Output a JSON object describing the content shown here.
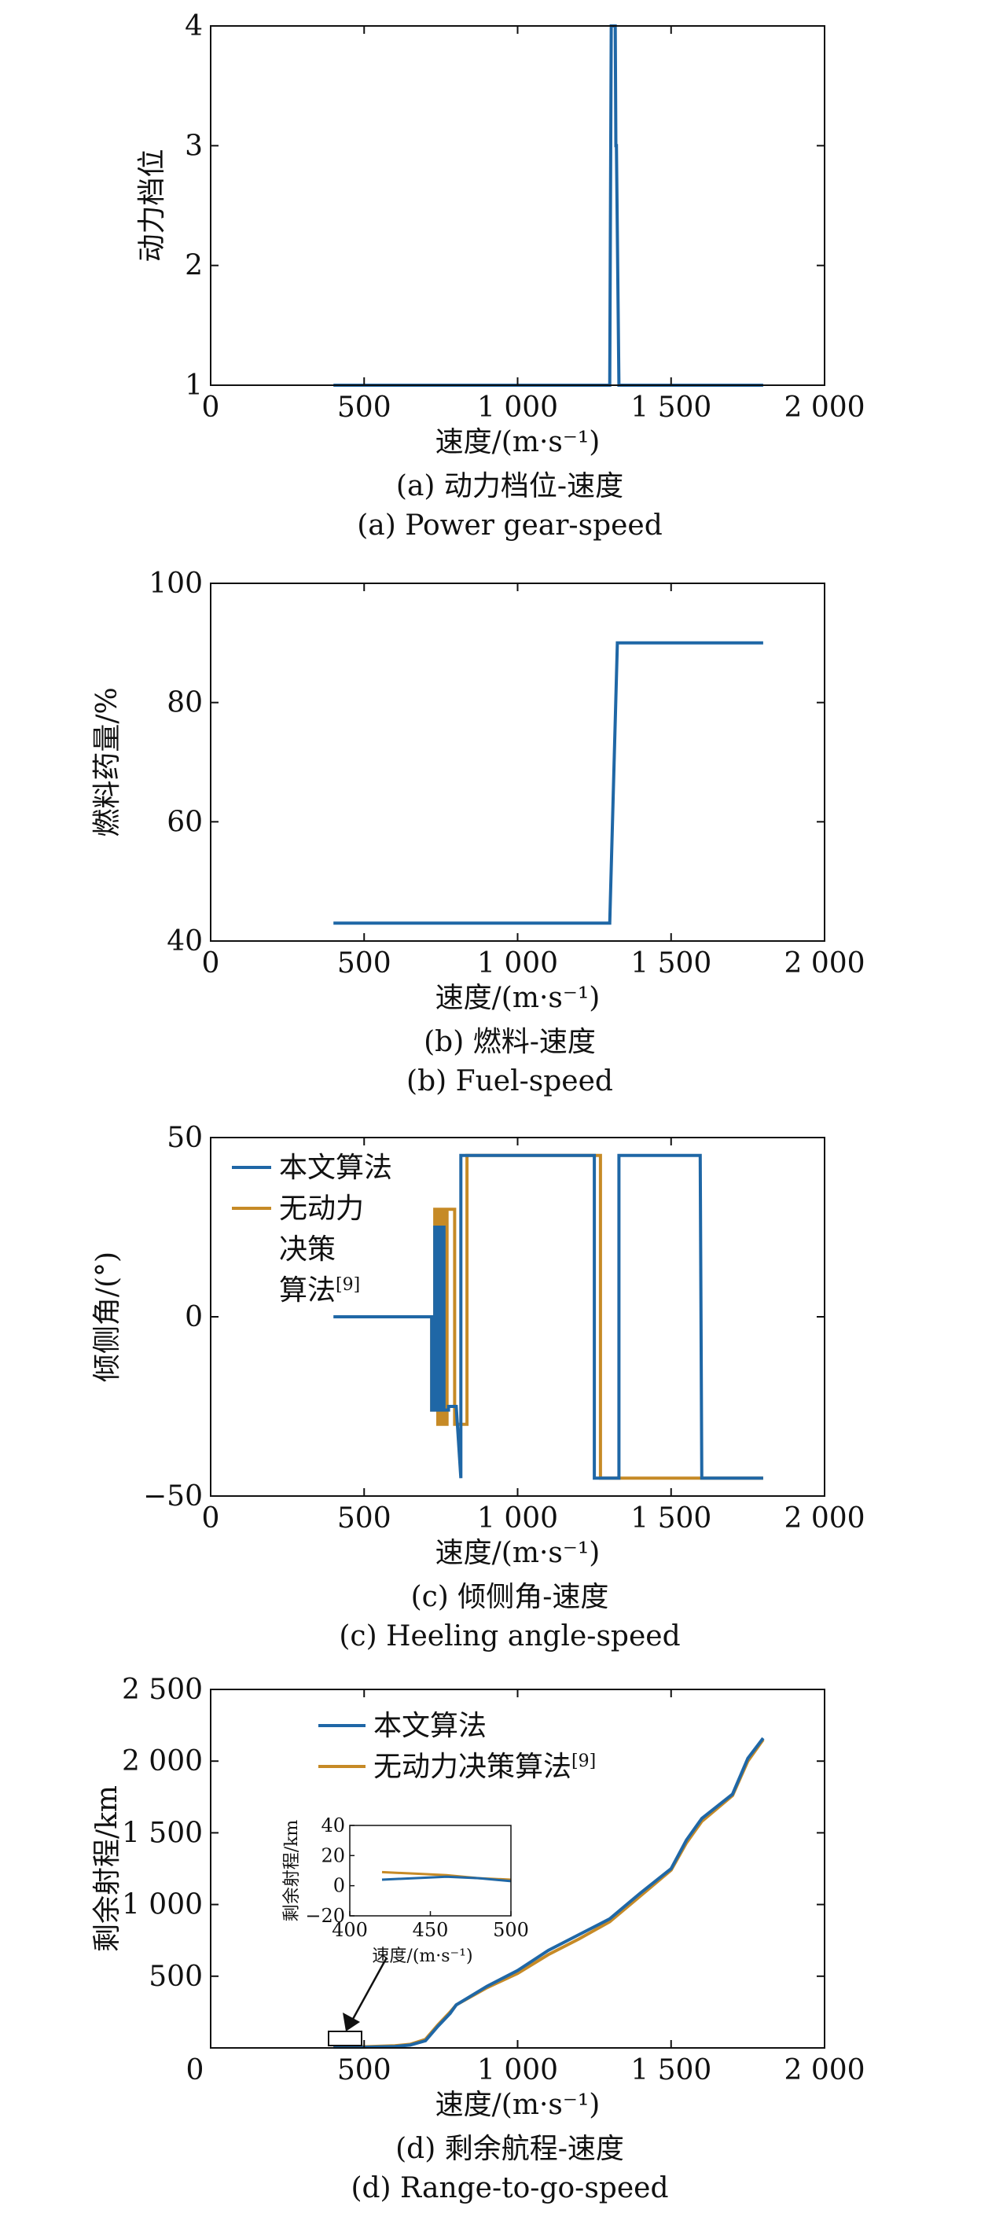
{
  "colors": {
    "series1": "#1f67a6",
    "series2": "#c68a26",
    "axis": "#111111"
  },
  "chart_data": [
    {
      "id": "a",
      "type": "line",
      "ylabel": "动力档位",
      "xlabel": "速度/(m·s⁻¹)",
      "xlim": [
        0,
        2000
      ],
      "ylim": [
        1,
        4
      ],
      "xticks": [
        0,
        500,
        1000,
        1500,
        2000
      ],
      "xtick_labels": [
        "0",
        "500",
        "1 000",
        "1 500",
        "2 000"
      ],
      "yticks": [
        1,
        2,
        3,
        4
      ],
      "ytick_labels": [
        "1",
        "2",
        "3",
        "4"
      ],
      "caption_cn": "(a) 动力档位-速度",
      "caption_en": "(a) Power gear-speed",
      "series": [
        {
          "color": "#1f67a6",
          "x": [
            400,
            1300,
            1305,
            1318,
            1320,
            1322,
            1330,
            1800
          ],
          "y": [
            1,
            1,
            4,
            4,
            3,
            3,
            1,
            1
          ]
        }
      ]
    },
    {
      "id": "b",
      "type": "line",
      "ylabel": "燃料药量/%",
      "xlabel": "速度/(m·s⁻¹)",
      "xlim": [
        0,
        2000
      ],
      "ylim": [
        40,
        100
      ],
      "xticks": [
        0,
        500,
        1000,
        1500,
        2000
      ],
      "xtick_labels": [
        "0",
        "500",
        "1 000",
        "1 500",
        "2 000"
      ],
      "yticks": [
        40,
        60,
        80,
        100
      ],
      "ytick_labels": [
        "40",
        "60",
        "80",
        "100"
      ],
      "caption_cn": "(b) 燃料-速度",
      "caption_en": "(b) Fuel-speed",
      "series": [
        {
          "color": "#1f67a6",
          "x": [
            400,
            1300,
            1325,
            1800
          ],
          "y": [
            43,
            43,
            90,
            90
          ]
        }
      ]
    },
    {
      "id": "c",
      "type": "line",
      "ylabel": "倾侧角/(°)",
      "xlabel": "速度/(m·s⁻¹)",
      "xlim": [
        0,
        2000
      ],
      "ylim": [
        -50,
        50
      ],
      "xticks": [
        0,
        500,
        1000,
        1500,
        2000
      ],
      "xtick_labels": [
        "0",
        "500",
        "1 000",
        "1 500",
        "2 000"
      ],
      "yticks": [
        -50,
        0,
        50
      ],
      "ytick_labels": [
        "−50",
        "0",
        "50"
      ],
      "caption_cn": "(c) 倾侧角-速度",
      "caption_en": "(c) Heeling angle-speed",
      "legend": [
        "本文算法",
        "无动力",
        "决策",
        "算法[9]"
      ],
      "series": [
        {
          "color": "#c68a26",
          "x": [
            720,
            720,
            730,
            730,
            740,
            740,
            750,
            750,
            760,
            760,
            770,
            770,
            795,
            795,
            835,
            835,
            1270,
            1270,
            1800
          ],
          "y": [
            0,
            -26,
            -26,
            30,
            30,
            -30,
            -30,
            30,
            30,
            -30,
            -30,
            30,
            30,
            -30,
            -30,
            45,
            45,
            -45,
            -45
          ]
        },
        {
          "color": "#1f67a6",
          "x": [
            400,
            720,
            720,
            730,
            730,
            740,
            740,
            750,
            750,
            760,
            760,
            775,
            775,
            800,
            815,
            815,
            1250,
            1250,
            1330,
            1330,
            1595,
            1600,
            1800
          ],
          "y": [
            0,
            0,
            -26,
            -26,
            25,
            25,
            -26,
            -26,
            25,
            25,
            -26,
            -26,
            -25,
            -25,
            -45,
            45,
            45,
            -45,
            -45,
            45,
            45,
            -45,
            -45
          ]
        }
      ]
    },
    {
      "id": "d",
      "type": "line",
      "ylabel": "剩余射程/km",
      "xlabel": "速度/(m·s⁻¹)",
      "xlim": [
        0,
        2000
      ],
      "ylim": [
        0,
        2500
      ],
      "xticks": [
        500,
        1000,
        1500,
        2000
      ],
      "xtick_labels": [
        "500",
        "1 000",
        "1 500",
        "2 000"
      ],
      "x_origin_label": "0",
      "yticks": [
        500,
        1000,
        1500,
        2000,
        2500
      ],
      "ytick_labels": [
        "500",
        "1 000",
        "1 500",
        "2 000",
        "2 500"
      ],
      "caption_cn": "(d) 剩余航程-速度",
      "caption_en": "(d) Range-to-go-speed",
      "legend": [
        "本文算法",
        "无动力决策算法[9]"
      ],
      "series": [
        {
          "color": "#c68a26",
          "x": [
            400,
            500,
            600,
            650,
            700,
            740,
            780,
            800,
            900,
            1000,
            1100,
            1200,
            1300,
            1400,
            1500,
            1550,
            1600,
            1700,
            1750,
            1800
          ],
          "y": [
            8,
            8,
            15,
            25,
            60,
            160,
            250,
            300,
            420,
            520,
            650,
            760,
            880,
            1060,
            1240,
            1430,
            1580,
            1760,
            2000,
            2150
          ]
        },
        {
          "color": "#1f67a6",
          "x": [
            400,
            500,
            600,
            650,
            700,
            740,
            780,
            800,
            900,
            1000,
            1100,
            1200,
            1300,
            1400,
            1500,
            1550,
            1600,
            1700,
            1750,
            1800
          ],
          "y": [
            5,
            5,
            10,
            20,
            50,
            150,
            240,
            300,
            430,
            540,
            680,
            790,
            900,
            1080,
            1250,
            1450,
            1600,
            1770,
            2020,
            2160
          ]
        }
      ],
      "inset": {
        "xlabel": "速度/(m·s⁻¹)",
        "ylabel": "剩余射程/km",
        "xlim": [
          400,
          500
        ],
        "ylim": [
          -20,
          40
        ],
        "xticks": [
          400,
          450,
          500
        ],
        "xtick_labels": [
          "400",
          "450",
          "500"
        ],
        "yticks": [
          -20,
          0,
          20,
          40
        ],
        "ytick_labels": [
          "−20",
          "0",
          "20",
          "40"
        ],
        "series": [
          {
            "color": "#c68a26",
            "x": [
              420,
              440,
              460,
              480,
              500
            ],
            "y": [
              9,
              8,
              7,
              5,
              4
            ]
          },
          {
            "color": "#1f67a6",
            "x": [
              420,
              440,
              460,
              480,
              500
            ],
            "y": [
              4,
              5,
              6,
              5,
              3
            ]
          }
        ]
      }
    }
  ]
}
